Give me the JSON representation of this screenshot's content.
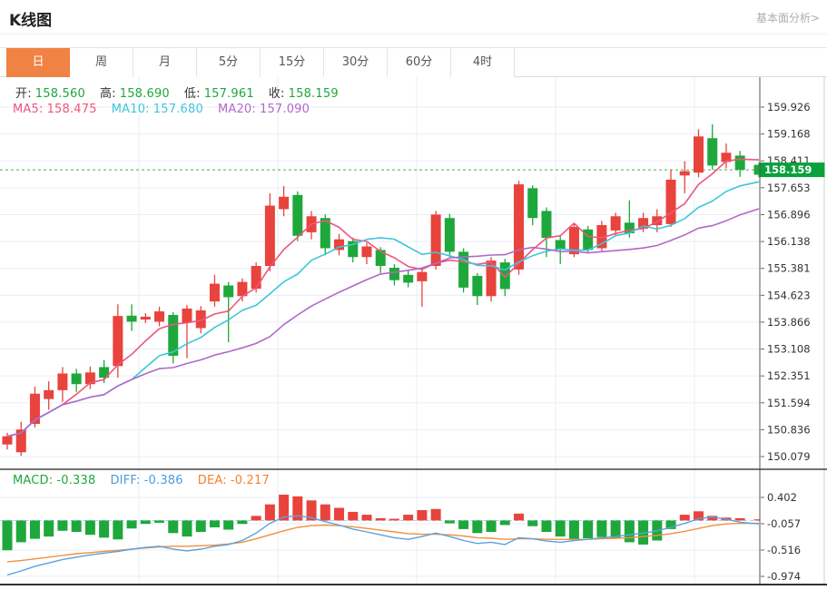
{
  "header": {
    "title": "K线图",
    "link": "基本面分析>"
  },
  "tabs": {
    "items": [
      "日",
      "周",
      "月",
      "5分",
      "15分",
      "30分",
      "60分",
      "4时"
    ],
    "selected_index": 0
  },
  "indicators": {
    "ohlc": [
      {
        "label": "开:",
        "value": "158.560"
      },
      {
        "label": "高:",
        "value": "158.690"
      },
      {
        "label": "低:",
        "value": "157.961"
      },
      {
        "label": "收:",
        "value": "158.159"
      }
    ],
    "ohlc_value_color": "#1ea83b",
    "ma": [
      {
        "label": "MA5:",
        "value": "158.475",
        "color": "#ef557e"
      },
      {
        "label": "MA10:",
        "value": "157.680",
        "color": "#3fc6da"
      },
      {
        "label": "MA20:",
        "value": "157.090",
        "color": "#b168c9"
      }
    ],
    "macd": [
      {
        "label": "MACD:",
        "value": "-0.338",
        "color": "#1ea83b"
      },
      {
        "label": "DIFF:",
        "value": "-0.386",
        "color": "#4a9be0"
      },
      {
        "label": "DEA:",
        "value": "-0.217",
        "color": "#f5812c"
      }
    ]
  },
  "price_badge": {
    "text": "158.159",
    "bg": "#0aa13c",
    "fg": "#ffffff"
  },
  "colors": {
    "up": "#e8433c",
    "down": "#1ea83b",
    "ma5": "#ef557e",
    "ma10": "#3fc6da",
    "ma20": "#b168c9",
    "diff_line": "#5aa2e0",
    "dea_line": "#f0913e",
    "grid": "#e9eef6",
    "axis_text": "#333333",
    "axis_border": "#555555",
    "dotted_price_line": "#3db24e",
    "macd_zero_dash": "#a9d0ee",
    "pane_separator": "#444444",
    "bottom_border": "#333333"
  },
  "chart_data": {
    "type": "candlestick+macd",
    "legend": {
      "main": [
        "MA5",
        "MA10",
        "MA20"
      ],
      "sub": [
        "MACD",
        "DIFF",
        "DEA"
      ]
    },
    "grid": true,
    "current_price": 158.159,
    "price_axis_ticks": [
      "159.926",
      "159.168",
      "158.411",
      "157.653",
      "156.896",
      "156.138",
      "155.381",
      "154.623",
      "153.866",
      "153.108",
      "152.351",
      "151.594",
      "150.836",
      "150.079"
    ],
    "macd_axis_ticks": [
      "0.402",
      "-0.057",
      "-0.516",
      "-0.974"
    ],
    "candles_ohlc": [
      [
        150.42,
        150.75,
        150.28,
        150.65
      ],
      [
        150.2,
        151.06,
        150.1,
        150.84
      ],
      [
        151.0,
        152.05,
        150.9,
        151.85
      ],
      [
        151.7,
        152.2,
        151.4,
        151.95
      ],
      [
        151.95,
        152.6,
        151.62,
        152.42
      ],
      [
        152.42,
        152.55,
        151.9,
        152.12
      ],
      [
        152.12,
        152.62,
        151.98,
        152.45
      ],
      [
        152.6,
        152.8,
        152.15,
        152.3
      ],
      [
        152.63,
        154.37,
        152.3,
        154.04
      ],
      [
        154.05,
        154.37,
        153.62,
        153.88
      ],
      [
        153.94,
        154.12,
        153.84,
        154.02
      ],
      [
        153.88,
        154.3,
        153.75,
        154.17
      ],
      [
        154.07,
        154.15,
        152.7,
        152.92
      ],
      [
        153.85,
        154.35,
        152.85,
        154.25
      ],
      [
        153.7,
        154.32,
        153.55,
        154.2
      ],
      [
        154.45,
        155.2,
        154.3,
        154.95
      ],
      [
        154.9,
        155.0,
        153.3,
        154.57
      ],
      [
        154.6,
        155.1,
        154.45,
        155.0
      ],
      [
        154.81,
        155.55,
        154.7,
        155.45
      ],
      [
        155.45,
        157.5,
        155.3,
        157.15
      ],
      [
        157.05,
        157.7,
        156.85,
        157.4
      ],
      [
        157.45,
        157.55,
        156.15,
        156.3
      ],
      [
        156.4,
        157.0,
        156.2,
        156.85
      ],
      [
        156.8,
        156.9,
        155.75,
        155.95
      ],
      [
        155.9,
        156.35,
        155.75,
        156.2
      ],
      [
        156.15,
        156.25,
        155.55,
        155.7
      ],
      [
        155.7,
        156.1,
        155.5,
        156.0
      ],
      [
        155.9,
        155.98,
        155.25,
        155.45
      ],
      [
        155.4,
        155.5,
        154.9,
        155.05
      ],
      [
        155.2,
        155.32,
        154.85,
        154.98
      ],
      [
        155.02,
        155.4,
        154.3,
        155.28
      ],
      [
        155.45,
        157.0,
        155.35,
        156.9
      ],
      [
        156.8,
        156.92,
        155.7,
        155.85
      ],
      [
        155.85,
        155.95,
        154.7,
        154.84
      ],
      [
        155.17,
        155.25,
        154.35,
        154.6
      ],
      [
        154.6,
        155.7,
        154.45,
        155.6
      ],
      [
        155.55,
        155.65,
        154.6,
        154.8
      ],
      [
        155.35,
        157.85,
        155.2,
        157.75
      ],
      [
        157.64,
        157.72,
        156.6,
        156.8
      ],
      [
        157.0,
        157.1,
        155.7,
        156.24
      ],
      [
        156.18,
        156.3,
        155.5,
        155.92
      ],
      [
        155.78,
        156.65,
        155.7,
        156.55
      ],
      [
        156.48,
        156.58,
        155.8,
        155.9
      ],
      [
        155.95,
        156.72,
        155.85,
        156.6
      ],
      [
        156.45,
        156.95,
        156.3,
        156.85
      ],
      [
        156.67,
        157.3,
        156.25,
        156.37
      ],
      [
        156.5,
        156.95,
        156.4,
        156.8
      ],
      [
        156.6,
        157.05,
        156.4,
        156.85
      ],
      [
        156.63,
        158.16,
        156.55,
        157.88
      ],
      [
        158.0,
        158.4,
        157.5,
        158.12
      ],
      [
        158.08,
        159.3,
        157.95,
        159.1
      ],
      [
        159.05,
        159.44,
        158.16,
        158.28
      ],
      [
        158.38,
        158.9,
        158.2,
        158.64
      ],
      [
        158.56,
        158.69,
        157.961,
        158.159
      ],
      [
        158.3,
        158.36,
        157.95,
        158.02
      ]
    ],
    "ma_windows": [
      5,
      10,
      20
    ],
    "macd_hist": [
      -0.52,
      -0.38,
      -0.32,
      -0.28,
      -0.18,
      -0.2,
      -0.25,
      -0.3,
      -0.33,
      -0.14,
      -0.06,
      -0.04,
      -0.22,
      -0.28,
      -0.2,
      -0.12,
      -0.16,
      -0.06,
      0.08,
      0.28,
      0.45,
      0.42,
      0.35,
      0.28,
      0.22,
      0.15,
      0.1,
      0.04,
      0.03,
      0.1,
      0.18,
      0.2,
      -0.05,
      -0.15,
      -0.22,
      -0.2,
      -0.08,
      0.12,
      -0.1,
      -0.2,
      -0.28,
      -0.33,
      -0.31,
      -0.29,
      -0.31,
      -0.38,
      -0.42,
      -0.35,
      -0.15,
      0.1,
      0.16,
      0.08,
      0.05,
      0.04,
      0.02
    ],
    "diff_series": [
      -0.95,
      -0.88,
      -0.8,
      -0.74,
      -0.68,
      -0.64,
      -0.6,
      -0.57,
      -0.54,
      -0.5,
      -0.47,
      -0.45,
      -0.5,
      -0.53,
      -0.5,
      -0.45,
      -0.42,
      -0.35,
      -0.22,
      -0.05,
      0.06,
      0.08,
      0.05,
      -0.02,
      -0.08,
      -0.15,
      -0.2,
      -0.25,
      -0.3,
      -0.33,
      -0.28,
      -0.22,
      -0.28,
      -0.35,
      -0.4,
      -0.38,
      -0.42,
      -0.3,
      -0.32,
      -0.36,
      -0.38,
      -0.35,
      -0.33,
      -0.3,
      -0.28,
      -0.25,
      -0.22,
      -0.18,
      -0.12,
      -0.05,
      0.03,
      0.06,
      0.02,
      -0.03,
      -0.06
    ],
    "dea_series": [
      -0.72,
      -0.7,
      -0.67,
      -0.64,
      -0.61,
      -0.58,
      -0.56,
      -0.54,
      -0.52,
      -0.5,
      -0.48,
      -0.46,
      -0.45,
      -0.45,
      -0.44,
      -0.43,
      -0.41,
      -0.38,
      -0.32,
      -0.25,
      -0.18,
      -0.12,
      -0.09,
      -0.08,
      -0.09,
      -0.11,
      -0.14,
      -0.17,
      -0.2,
      -0.23,
      -0.24,
      -0.24,
      -0.25,
      -0.27,
      -0.3,
      -0.31,
      -0.33,
      -0.32,
      -0.32,
      -0.33,
      -0.33,
      -0.33,
      -0.33,
      -0.32,
      -0.31,
      -0.3,
      -0.28,
      -0.26,
      -0.23,
      -0.19,
      -0.14,
      -0.09,
      -0.06,
      -0.05,
      -0.05
    ]
  }
}
